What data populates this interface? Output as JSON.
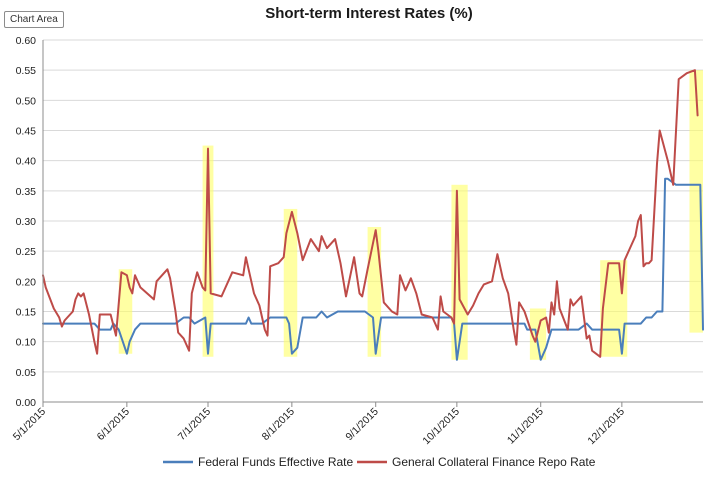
{
  "chart_area_label": "Chart Area",
  "chart_data": {
    "type": "line",
    "title": "Short-term Interest Rates (%)",
    "xlabel": "",
    "ylabel": "",
    "ylim": [
      0,
      0.6
    ],
    "yticks": [
      "0.00",
      "0.05",
      "0.10",
      "0.15",
      "0.20",
      "0.25",
      "0.30",
      "0.35",
      "0.40",
      "0.45",
      "0.50",
      "0.55",
      "0.60"
    ],
    "xlim": [
      "2015-05-01",
      "2015-12-31"
    ],
    "xticks": [
      {
        "date": "2015-05-01",
        "label": "5/1/2015"
      },
      {
        "date": "2015-06-01",
        "label": "6/1/2015"
      },
      {
        "date": "2015-07-01",
        "label": "7/1/2015"
      },
      {
        "date": "2015-08-01",
        "label": "8/1/2015"
      },
      {
        "date": "2015-09-01",
        "label": "9/1/2015"
      },
      {
        "date": "2015-10-01",
        "label": "10/1/2015"
      },
      {
        "date": "2015-11-01",
        "label": "11/1/2015"
      },
      {
        "date": "2015-12-01",
        "label": "12/1/2015"
      }
    ],
    "grid": true,
    "legend_position": "bottom",
    "highlights": [
      {
        "start": "2015-05-29",
        "end": "2015-06-03",
        "y_low": 0.08,
        "y_high": 0.22
      },
      {
        "start": "2015-06-29",
        "end": "2015-07-03",
        "y_low": 0.075,
        "y_high": 0.425
      },
      {
        "start": "2015-07-29",
        "end": "2015-08-03",
        "y_low": 0.075,
        "y_high": 0.32
      },
      {
        "start": "2015-08-29",
        "end": "2015-09-03",
        "y_low": 0.075,
        "y_high": 0.29
      },
      {
        "start": "2015-09-29",
        "end": "2015-10-05",
        "y_low": 0.07,
        "y_high": 0.36
      },
      {
        "start": "2015-10-28",
        "end": "2015-11-03",
        "y_low": 0.07,
        "y_high": 0.155
      },
      {
        "start": "2015-11-23",
        "end": "2015-12-03",
        "y_low": 0.075,
        "y_high": 0.235
      },
      {
        "start": "2015-12-26",
        "end": "2015-12-31",
        "y_low": 0.115,
        "y_high": 0.55
      }
    ],
    "series": [
      {
        "name": "Federal Funds Effective Rate",
        "color": "#4a7ebb",
        "points": [
          [
            "2015-05-01",
            0.13
          ],
          [
            "2015-05-08",
            0.13
          ],
          [
            "2015-05-15",
            0.13
          ],
          [
            "2015-05-20",
            0.13
          ],
          [
            "2015-05-22",
            0.12
          ],
          [
            "2015-05-26",
            0.12
          ],
          [
            "2015-05-27",
            0.13
          ],
          [
            "2015-05-29",
            0.12
          ],
          [
            "2015-06-01",
            0.08
          ],
          [
            "2015-06-02",
            0.1
          ],
          [
            "2015-06-04",
            0.12
          ],
          [
            "2015-06-06",
            0.13
          ],
          [
            "2015-06-10",
            0.13
          ],
          [
            "2015-06-16",
            0.13
          ],
          [
            "2015-06-19",
            0.13
          ],
          [
            "2015-06-22",
            0.14
          ],
          [
            "2015-06-24",
            0.14
          ],
          [
            "2015-06-26",
            0.13
          ],
          [
            "2015-06-30",
            0.14
          ],
          [
            "2015-07-01",
            0.08
          ],
          [
            "2015-07-02",
            0.13
          ],
          [
            "2015-07-10",
            0.13
          ],
          [
            "2015-07-15",
            0.13
          ],
          [
            "2015-07-16",
            0.14
          ],
          [
            "2015-07-17",
            0.13
          ],
          [
            "2015-07-21",
            0.13
          ],
          [
            "2015-07-24",
            0.14
          ],
          [
            "2015-07-28",
            0.14
          ],
          [
            "2015-07-30",
            0.14
          ],
          [
            "2015-07-31",
            0.13
          ],
          [
            "2015-08-01",
            0.08
          ],
          [
            "2015-08-03",
            0.09
          ],
          [
            "2015-08-05",
            0.14
          ],
          [
            "2015-08-10",
            0.14
          ],
          [
            "2015-08-12",
            0.15
          ],
          [
            "2015-08-14",
            0.14
          ],
          [
            "2015-08-18",
            0.15
          ],
          [
            "2015-08-24",
            0.15
          ],
          [
            "2015-08-28",
            0.15
          ],
          [
            "2015-08-31",
            0.14
          ],
          [
            "2015-09-01",
            0.08
          ],
          [
            "2015-09-03",
            0.14
          ],
          [
            "2015-09-10",
            0.14
          ],
          [
            "2015-09-17",
            0.14
          ],
          [
            "2015-09-24",
            0.14
          ],
          [
            "2015-09-29",
            0.14
          ],
          [
            "2015-09-30",
            0.13
          ],
          [
            "2015-10-01",
            0.07
          ],
          [
            "2015-10-03",
            0.13
          ],
          [
            "2015-10-10",
            0.13
          ],
          [
            "2015-10-20",
            0.13
          ],
          [
            "2015-10-26",
            0.13
          ],
          [
            "2015-10-27",
            0.12
          ],
          [
            "2015-10-30",
            0.12
          ],
          [
            "2015-11-01",
            0.07
          ],
          [
            "2015-11-03",
            0.09
          ],
          [
            "2015-11-05",
            0.12
          ],
          [
            "2015-11-10",
            0.12
          ],
          [
            "2015-11-15",
            0.12
          ],
          [
            "2015-11-18",
            0.13
          ],
          [
            "2015-11-20",
            0.12
          ],
          [
            "2015-11-24",
            0.12
          ],
          [
            "2015-11-27",
            0.12
          ],
          [
            "2015-11-30",
            0.12
          ],
          [
            "2015-12-01",
            0.08
          ],
          [
            "2015-12-02",
            0.13
          ],
          [
            "2015-12-08",
            0.13
          ],
          [
            "2015-12-10",
            0.14
          ],
          [
            "2015-12-12",
            0.14
          ],
          [
            "2015-12-14",
            0.15
          ],
          [
            "2015-12-16",
            0.15
          ],
          [
            "2015-12-17",
            0.37
          ],
          [
            "2015-12-18",
            0.37
          ],
          [
            "2015-12-21",
            0.36
          ],
          [
            "2015-12-24",
            0.36
          ],
          [
            "2015-12-28",
            0.36
          ],
          [
            "2015-12-30",
            0.36
          ],
          [
            "2015-12-31",
            0.12
          ]
        ]
      },
      {
        "name": "General Collateral Finance Repo Rate",
        "color": "#be4b48",
        "points": [
          [
            "2015-05-01",
            0.21
          ],
          [
            "2015-05-02",
            0.19
          ],
          [
            "2015-05-05",
            0.155
          ],
          [
            "2015-05-07",
            0.14
          ],
          [
            "2015-05-08",
            0.125
          ],
          [
            "2015-05-09",
            0.135
          ],
          [
            "2015-05-12",
            0.15
          ],
          [
            "2015-05-13",
            0.17
          ],
          [
            "2015-05-14",
            0.18
          ],
          [
            "2015-05-15",
            0.175
          ],
          [
            "2015-05-16",
            0.18
          ],
          [
            "2015-05-18",
            0.145
          ],
          [
            "2015-05-20",
            0.1
          ],
          [
            "2015-05-21",
            0.08
          ],
          [
            "2015-05-22",
            0.145
          ],
          [
            "2015-05-26",
            0.145
          ],
          [
            "2015-05-28",
            0.11
          ],
          [
            "2015-05-30",
            0.215
          ],
          [
            "2015-06-01",
            0.21
          ],
          [
            "2015-06-02",
            0.19
          ],
          [
            "2015-06-03",
            0.18
          ],
          [
            "2015-06-04",
            0.21
          ],
          [
            "2015-06-06",
            0.19
          ],
          [
            "2015-06-11",
            0.17
          ],
          [
            "2015-06-12",
            0.2
          ],
          [
            "2015-06-16",
            0.22
          ],
          [
            "2015-06-17",
            0.205
          ],
          [
            "2015-06-19",
            0.15
          ],
          [
            "2015-06-20",
            0.115
          ],
          [
            "2015-06-22",
            0.105
          ],
          [
            "2015-06-24",
            0.085
          ],
          [
            "2015-06-25",
            0.18
          ],
          [
            "2015-06-27",
            0.215
          ],
          [
            "2015-06-29",
            0.19
          ],
          [
            "2015-06-30",
            0.185
          ],
          [
            "2015-07-01",
            0.42
          ],
          [
            "2015-07-02",
            0.18
          ],
          [
            "2015-07-06",
            0.175
          ],
          [
            "2015-07-10",
            0.215
          ],
          [
            "2015-07-14",
            0.21
          ],
          [
            "2015-07-15",
            0.24
          ],
          [
            "2015-07-16",
            0.22
          ],
          [
            "2015-07-18",
            0.18
          ],
          [
            "2015-07-20",
            0.16
          ],
          [
            "2015-07-21",
            0.14
          ],
          [
            "2015-07-22",
            0.12
          ],
          [
            "2015-07-23",
            0.11
          ],
          [
            "2015-07-24",
            0.225
          ],
          [
            "2015-07-27",
            0.23
          ],
          [
            "2015-07-29",
            0.24
          ],
          [
            "2015-07-30",
            0.28
          ],
          [
            "2015-08-01",
            0.315
          ],
          [
            "2015-08-03",
            0.28
          ],
          [
            "2015-08-05",
            0.235
          ],
          [
            "2015-08-08",
            0.27
          ],
          [
            "2015-08-11",
            0.25
          ],
          [
            "2015-08-12",
            0.275
          ],
          [
            "2015-08-14",
            0.255
          ],
          [
            "2015-08-17",
            0.27
          ],
          [
            "2015-08-19",
            0.23
          ],
          [
            "2015-08-21",
            0.175
          ],
          [
            "2015-08-24",
            0.24
          ],
          [
            "2015-08-26",
            0.18
          ],
          [
            "2015-08-27",
            0.175
          ],
          [
            "2015-08-29",
            0.22
          ],
          [
            "2015-09-01",
            0.285
          ],
          [
            "2015-09-02",
            0.25
          ],
          [
            "2015-09-04",
            0.165
          ],
          [
            "2015-09-07",
            0.15
          ],
          [
            "2015-09-09",
            0.145
          ],
          [
            "2015-09-10",
            0.21
          ],
          [
            "2015-09-12",
            0.185
          ],
          [
            "2015-09-14",
            0.205
          ],
          [
            "2015-09-16",
            0.18
          ],
          [
            "2015-09-18",
            0.145
          ],
          [
            "2015-09-22",
            0.14
          ],
          [
            "2015-09-24",
            0.12
          ],
          [
            "2015-09-25",
            0.175
          ],
          [
            "2015-09-26",
            0.15
          ],
          [
            "2015-09-29",
            0.14
          ],
          [
            "2015-09-30",
            0.13
          ],
          [
            "2015-10-01",
            0.35
          ],
          [
            "2015-10-02",
            0.17
          ],
          [
            "2015-10-05",
            0.145
          ],
          [
            "2015-10-07",
            0.16
          ],
          [
            "2015-10-09",
            0.18
          ],
          [
            "2015-10-11",
            0.195
          ],
          [
            "2015-10-14",
            0.2
          ],
          [
            "2015-10-16",
            0.245
          ],
          [
            "2015-10-18",
            0.205
          ],
          [
            "2015-10-20",
            0.18
          ],
          [
            "2015-10-22",
            0.12
          ],
          [
            "2015-10-23",
            0.095
          ],
          [
            "2015-10-24",
            0.165
          ],
          [
            "2015-10-26",
            0.15
          ],
          [
            "2015-10-29",
            0.11
          ],
          [
            "2015-10-30",
            0.1
          ],
          [
            "2015-11-01",
            0.135
          ],
          [
            "2015-11-03",
            0.14
          ],
          [
            "2015-11-04",
            0.115
          ],
          [
            "2015-11-05",
            0.165
          ],
          [
            "2015-11-06",
            0.145
          ],
          [
            "2015-11-07",
            0.2
          ],
          [
            "2015-11-08",
            0.155
          ],
          [
            "2015-11-11",
            0.12
          ],
          [
            "2015-11-12",
            0.17
          ],
          [
            "2015-11-13",
            0.16
          ],
          [
            "2015-11-16",
            0.175
          ],
          [
            "2015-11-18",
            0.105
          ],
          [
            "2015-11-19",
            0.11
          ],
          [
            "2015-11-20",
            0.085
          ],
          [
            "2015-11-23",
            0.075
          ],
          [
            "2015-11-24",
            0.155
          ],
          [
            "2015-11-26",
            0.23
          ],
          [
            "2015-11-30",
            0.23
          ],
          [
            "2015-12-01",
            0.18
          ],
          [
            "2015-12-02",
            0.235
          ],
          [
            "2015-12-04",
            0.255
          ],
          [
            "2015-12-06",
            0.275
          ],
          [
            "2015-12-07",
            0.3
          ],
          [
            "2015-12-08",
            0.31
          ],
          [
            "2015-12-09",
            0.225
          ],
          [
            "2015-12-10",
            0.23
          ],
          [
            "2015-12-11",
            0.23
          ],
          [
            "2015-12-12",
            0.235
          ],
          [
            "2015-12-14",
            0.395
          ],
          [
            "2015-12-15",
            0.45
          ],
          [
            "2015-12-18",
            0.4
          ],
          [
            "2015-12-20",
            0.36
          ],
          [
            "2015-12-22",
            0.535
          ],
          [
            "2015-12-25",
            0.545
          ],
          [
            "2015-12-28",
            0.55
          ],
          [
            "2015-12-29",
            0.475
          ]
        ]
      }
    ]
  }
}
